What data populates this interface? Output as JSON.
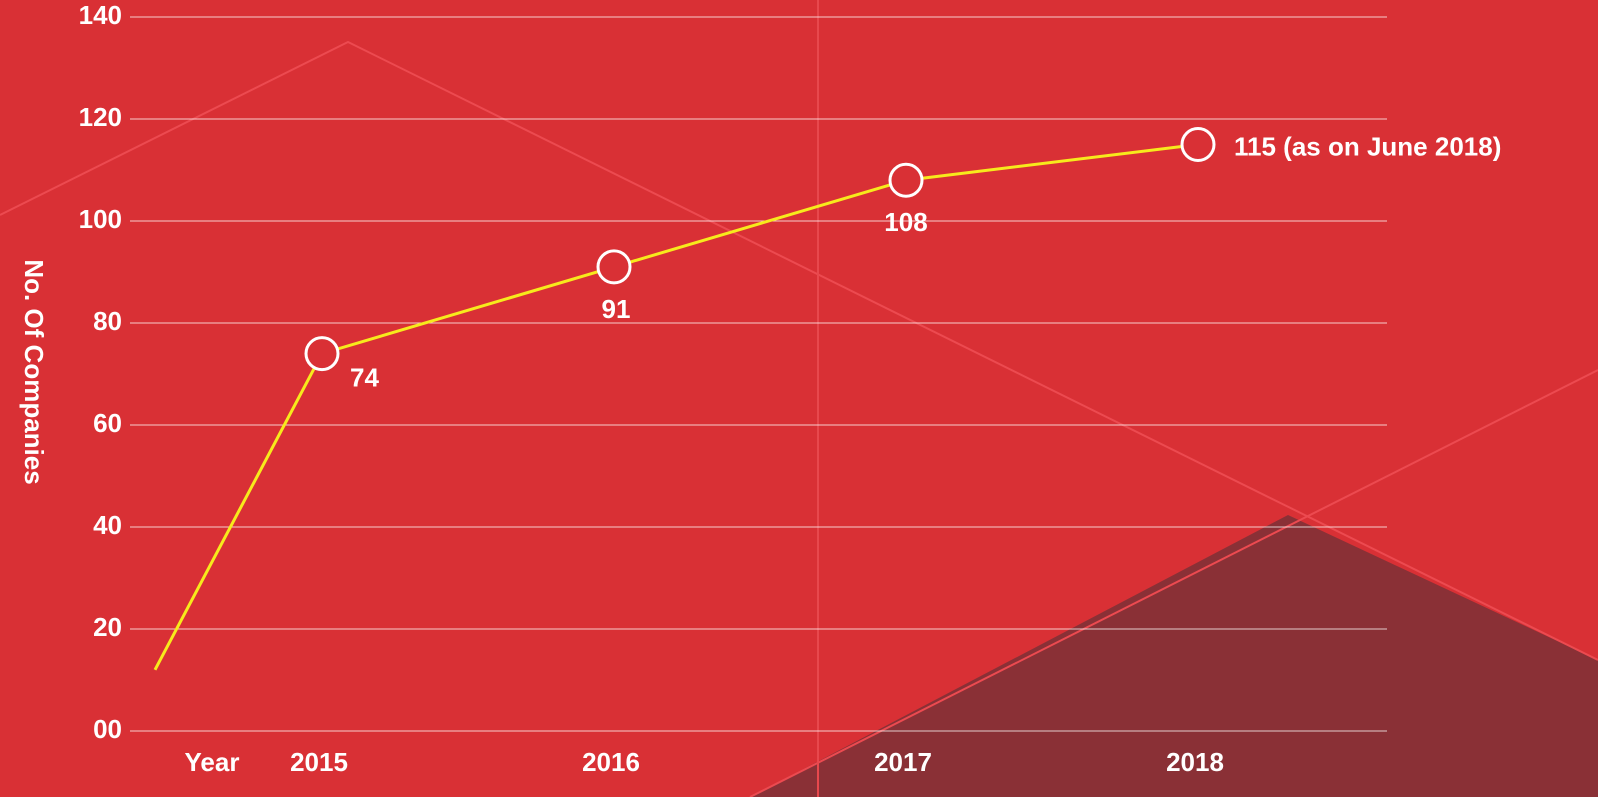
{
  "chart_data": {
    "type": "line",
    "categories": [
      null,
      "2015",
      "2016",
      "2017",
      "2018"
    ],
    "series": [
      {
        "color": "#f7ea1c",
        "values": [
          12,
          74,
          91,
          108,
          115
        ],
        "value_labels": [
          null,
          "74",
          "91",
          "108",
          "115 (as on June 2018)"
        ]
      }
    ],
    "x_label": "Year",
    "y_label": "No. Of Companies",
    "ylim": [
      0,
      140
    ],
    "yticks": [
      {
        "value": 0,
        "label": "00"
      },
      20,
      40,
      60,
      80,
      100,
      120,
      140
    ],
    "grid": true
  }
}
